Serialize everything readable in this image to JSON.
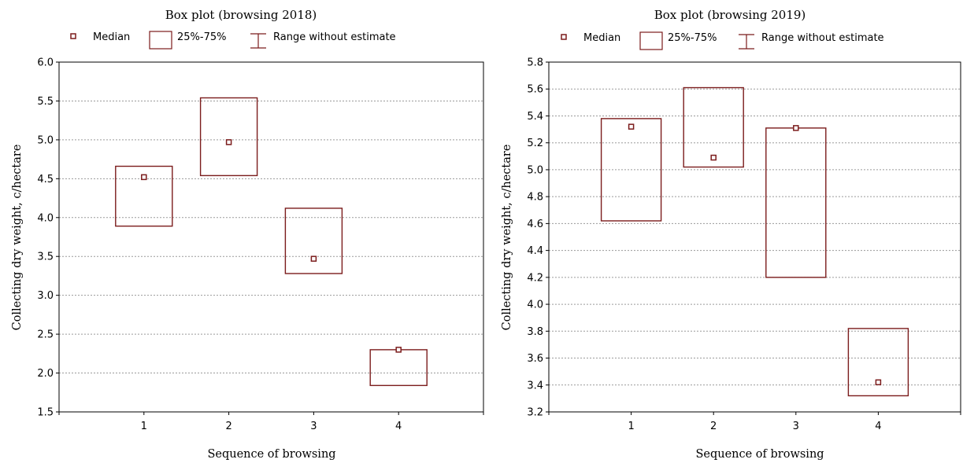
{
  "legend": {
    "median_label": "Median",
    "box_label": "25%-75%",
    "range_label": "Range without estimate"
  },
  "colors": {
    "box": "#7b1c1c",
    "grid": "#9a9a9a",
    "axis": "#000000"
  },
  "chart_data": [
    {
      "type": "box",
      "title": "Box plot (browsing 2018)",
      "xlabel": "Sequence of browsing",
      "ylabel": "Collecting dry weight, c/hectare",
      "categories": [
        "1",
        "2",
        "3",
        "4"
      ],
      "xlim": [
        0,
        5
      ],
      "ylim": [
        1.5,
        6.0
      ],
      "y_ticks": [
        "1.5",
        "2.0",
        "2.5",
        "3.0",
        "3.5",
        "4.0",
        "4.5",
        "5.0",
        "5.5",
        "6.0"
      ],
      "grid": "horizontal dotted",
      "legend_position": "top",
      "boxes": [
        {
          "category": "1",
          "q1": 3.89,
          "q3": 4.66,
          "median": 4.52
        },
        {
          "category": "2",
          "q1": 4.54,
          "q3": 5.54,
          "median": 4.97
        },
        {
          "category": "3",
          "q1": 3.28,
          "q3": 4.12,
          "median": 3.47
        },
        {
          "category": "4",
          "q1": 1.84,
          "q3": 2.3,
          "median": 2.3
        }
      ]
    },
    {
      "type": "box",
      "title": "Box plot (browsing 2019)",
      "xlabel": "Sequence of browsing",
      "ylabel": "Collecting dry weight, c/hectare",
      "categories": [
        "1",
        "2",
        "3",
        "4"
      ],
      "xlim": [
        0,
        5
      ],
      "ylim": [
        3.2,
        5.8
      ],
      "y_ticks": [
        "3.2",
        "3.4",
        "3.6",
        "3.8",
        "4.0",
        "4.2",
        "4.4",
        "4.6",
        "4.8",
        "5.0",
        "5.2",
        "5.4",
        "5.6",
        "5.8"
      ],
      "grid": "horizontal dotted",
      "legend_position": "top",
      "boxes": [
        {
          "category": "1",
          "q1": 4.62,
          "q3": 5.38,
          "median": 5.32
        },
        {
          "category": "2",
          "q1": 5.02,
          "q3": 5.61,
          "median": 5.09
        },
        {
          "category": "3",
          "q1": 4.2,
          "q3": 5.31,
          "median": 5.31
        },
        {
          "category": "4",
          "q1": 3.32,
          "q3": 3.82,
          "median": 3.42
        }
      ]
    }
  ]
}
